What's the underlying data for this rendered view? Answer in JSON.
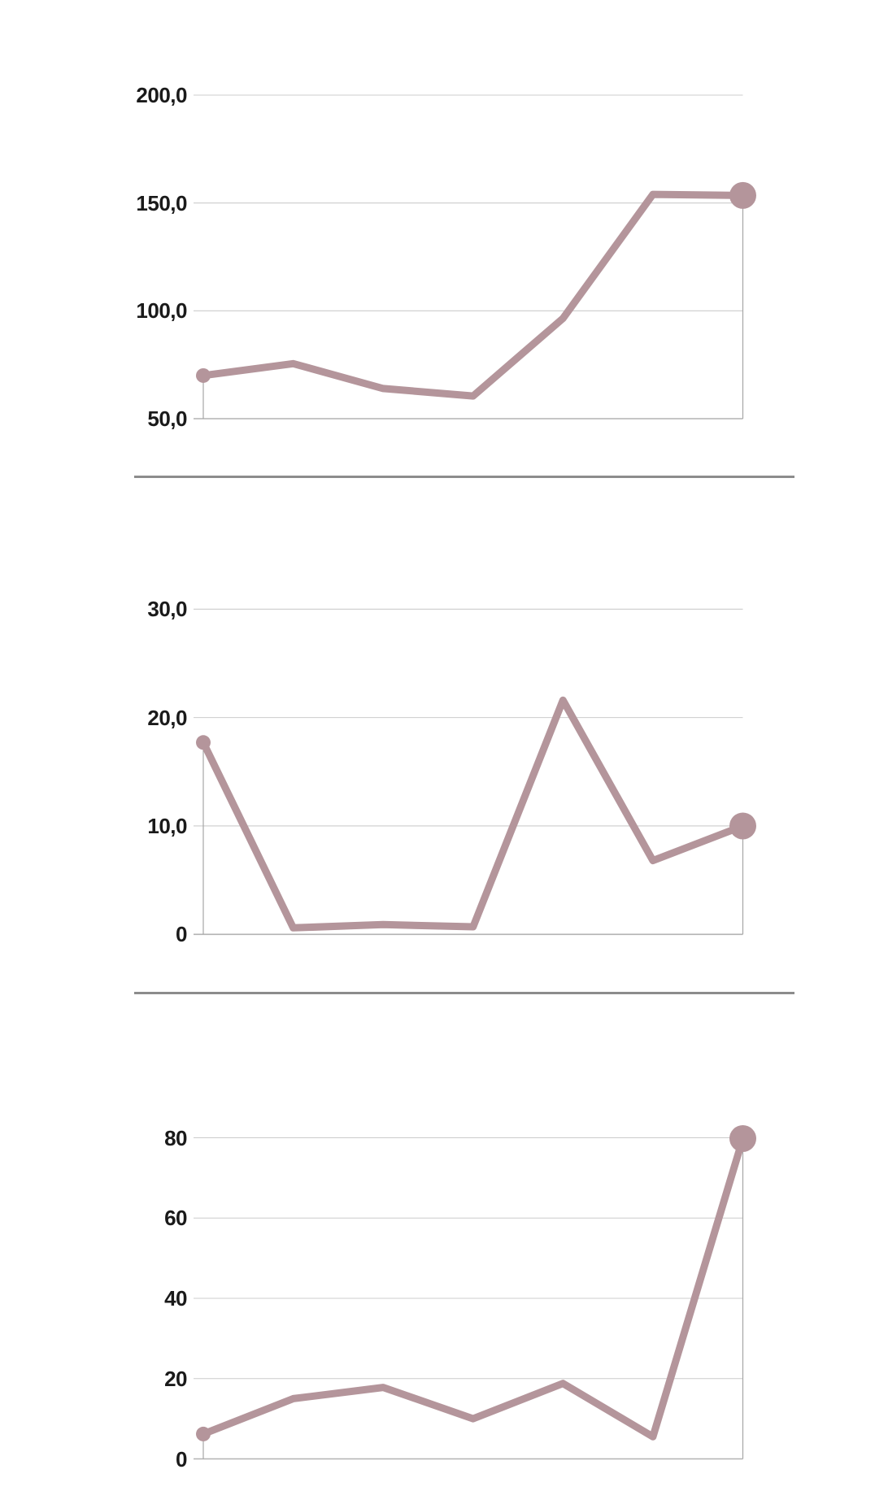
{
  "colors": {
    "line": "#b4959b",
    "marker": "#b4959b",
    "grid": "#cccccc",
    "baseline_axis": "#b3b3b3",
    "side_axis": "#a6a6a6",
    "label": "#1a1a1a",
    "separator": "#8c8c8c",
    "background": "#ffffff"
  },
  "chart_data": [
    {
      "type": "line",
      "title": "",
      "xlabel": "",
      "ylabel": "",
      "grid": true,
      "legend_position": "none",
      "decimal_format": "comma",
      "ylim": [
        50,
        212
      ],
      "y_ticks": [
        {
          "value": 200,
          "label": "200,0"
        },
        {
          "value": 150,
          "label": "150,0"
        },
        {
          "value": 100,
          "label": "100,0"
        },
        {
          "value": 50,
          "label": "50,0"
        }
      ],
      "values": [
        70.0,
        75.5,
        64.0,
        60.5,
        96.5,
        154.0,
        153.5
      ],
      "markers": {
        "start_dot": true,
        "end_dot": true
      }
    },
    {
      "type": "line",
      "title": "",
      "xlabel": "",
      "ylabel": "",
      "grid": true,
      "legend_position": "none",
      "decimal_format": "comma",
      "ylim": [
        0,
        33
      ],
      "y_ticks": [
        {
          "value": 30,
          "label": "30,0"
        },
        {
          "value": 20,
          "label": "20,0"
        },
        {
          "value": 10,
          "label": "10,0"
        },
        {
          "value": 0,
          "label": "0"
        }
      ],
      "values": [
        17.7,
        0.6,
        0.9,
        0.7,
        21.6,
        6.8,
        10.0
      ],
      "markers": {
        "start_dot": true,
        "end_dot": true
      }
    },
    {
      "type": "line",
      "title": "",
      "xlabel": "",
      "ylabel": "",
      "grid": true,
      "legend_position": "none",
      "decimal_format": "plain",
      "ylim": [
        0,
        81
      ],
      "y_ticks": [
        {
          "value": 80,
          "label": "80"
        },
        {
          "value": 60,
          "label": "60"
        },
        {
          "value": 40,
          "label": "40"
        },
        {
          "value": 20,
          "label": "20"
        },
        {
          "value": 0,
          "label": "0"
        }
      ],
      "values": [
        6.2,
        15.0,
        17.8,
        10.0,
        18.8,
        5.5,
        79.8
      ],
      "markers": {
        "start_dot": true,
        "end_dot": true
      }
    }
  ]
}
